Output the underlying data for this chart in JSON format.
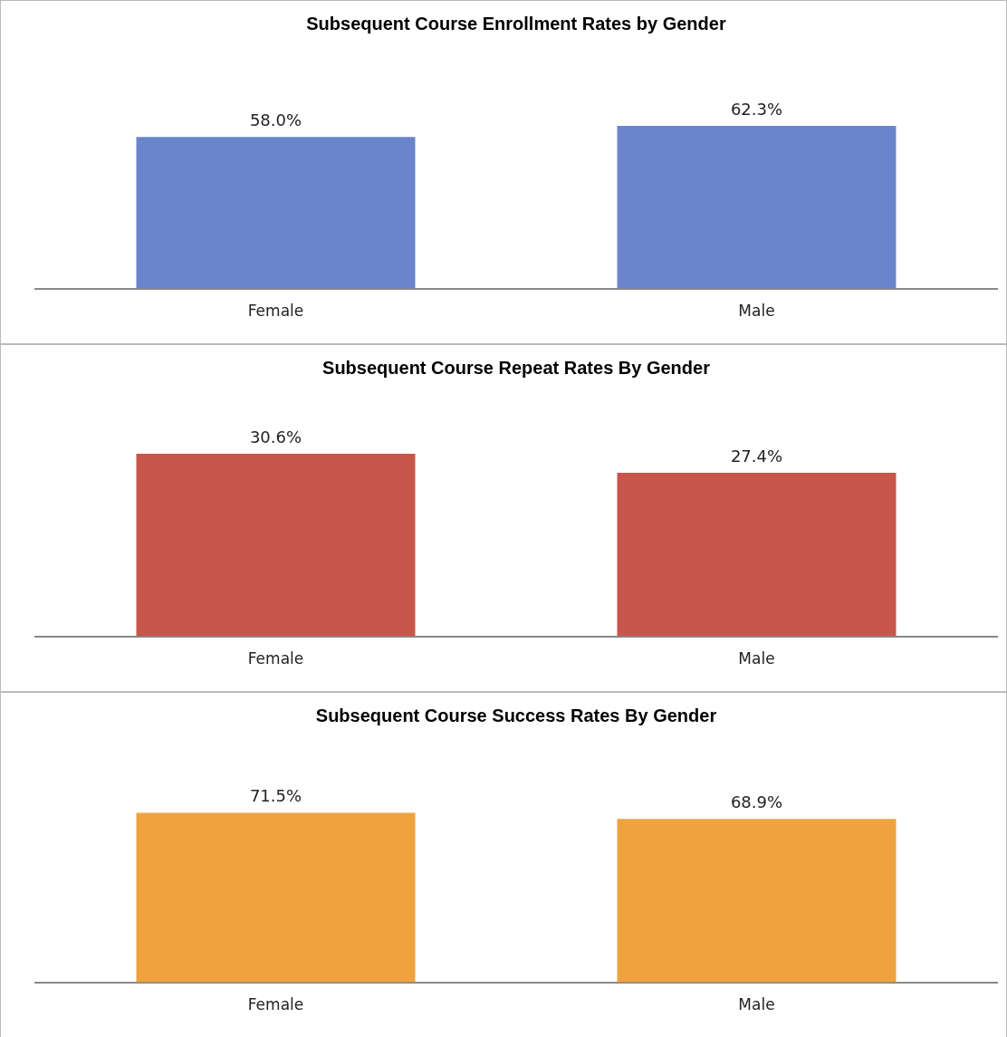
{
  "chart_data": [
    {
      "type": "bar",
      "title": "Subsequent Course Enrollment Rates by Gender",
      "categories": [
        "Female",
        "Male"
      ],
      "values": [
        58.0,
        62.3
      ],
      "value_labels": [
        "58.0%",
        "62.3%"
      ],
      "color": "#6a85cc",
      "grid": false,
      "legend": false
    },
    {
      "type": "bar",
      "title": "Subsequent Course Repeat Rates By Gender",
      "categories": [
        "Female",
        "Male"
      ],
      "values": [
        30.6,
        27.4
      ],
      "value_labels": [
        "30.6%",
        "27.4%"
      ],
      "color": "#c9564b",
      "grid": false,
      "legend": false
    },
    {
      "type": "bar",
      "title": "Subsequent Course Success Rates By Gender",
      "categories": [
        "Female",
        "Male"
      ],
      "values": [
        71.5,
        68.9
      ],
      "value_labels": [
        "71.5%",
        "68.9%"
      ],
      "color": "#f0a23e",
      "grid": false,
      "legend": false
    }
  ]
}
